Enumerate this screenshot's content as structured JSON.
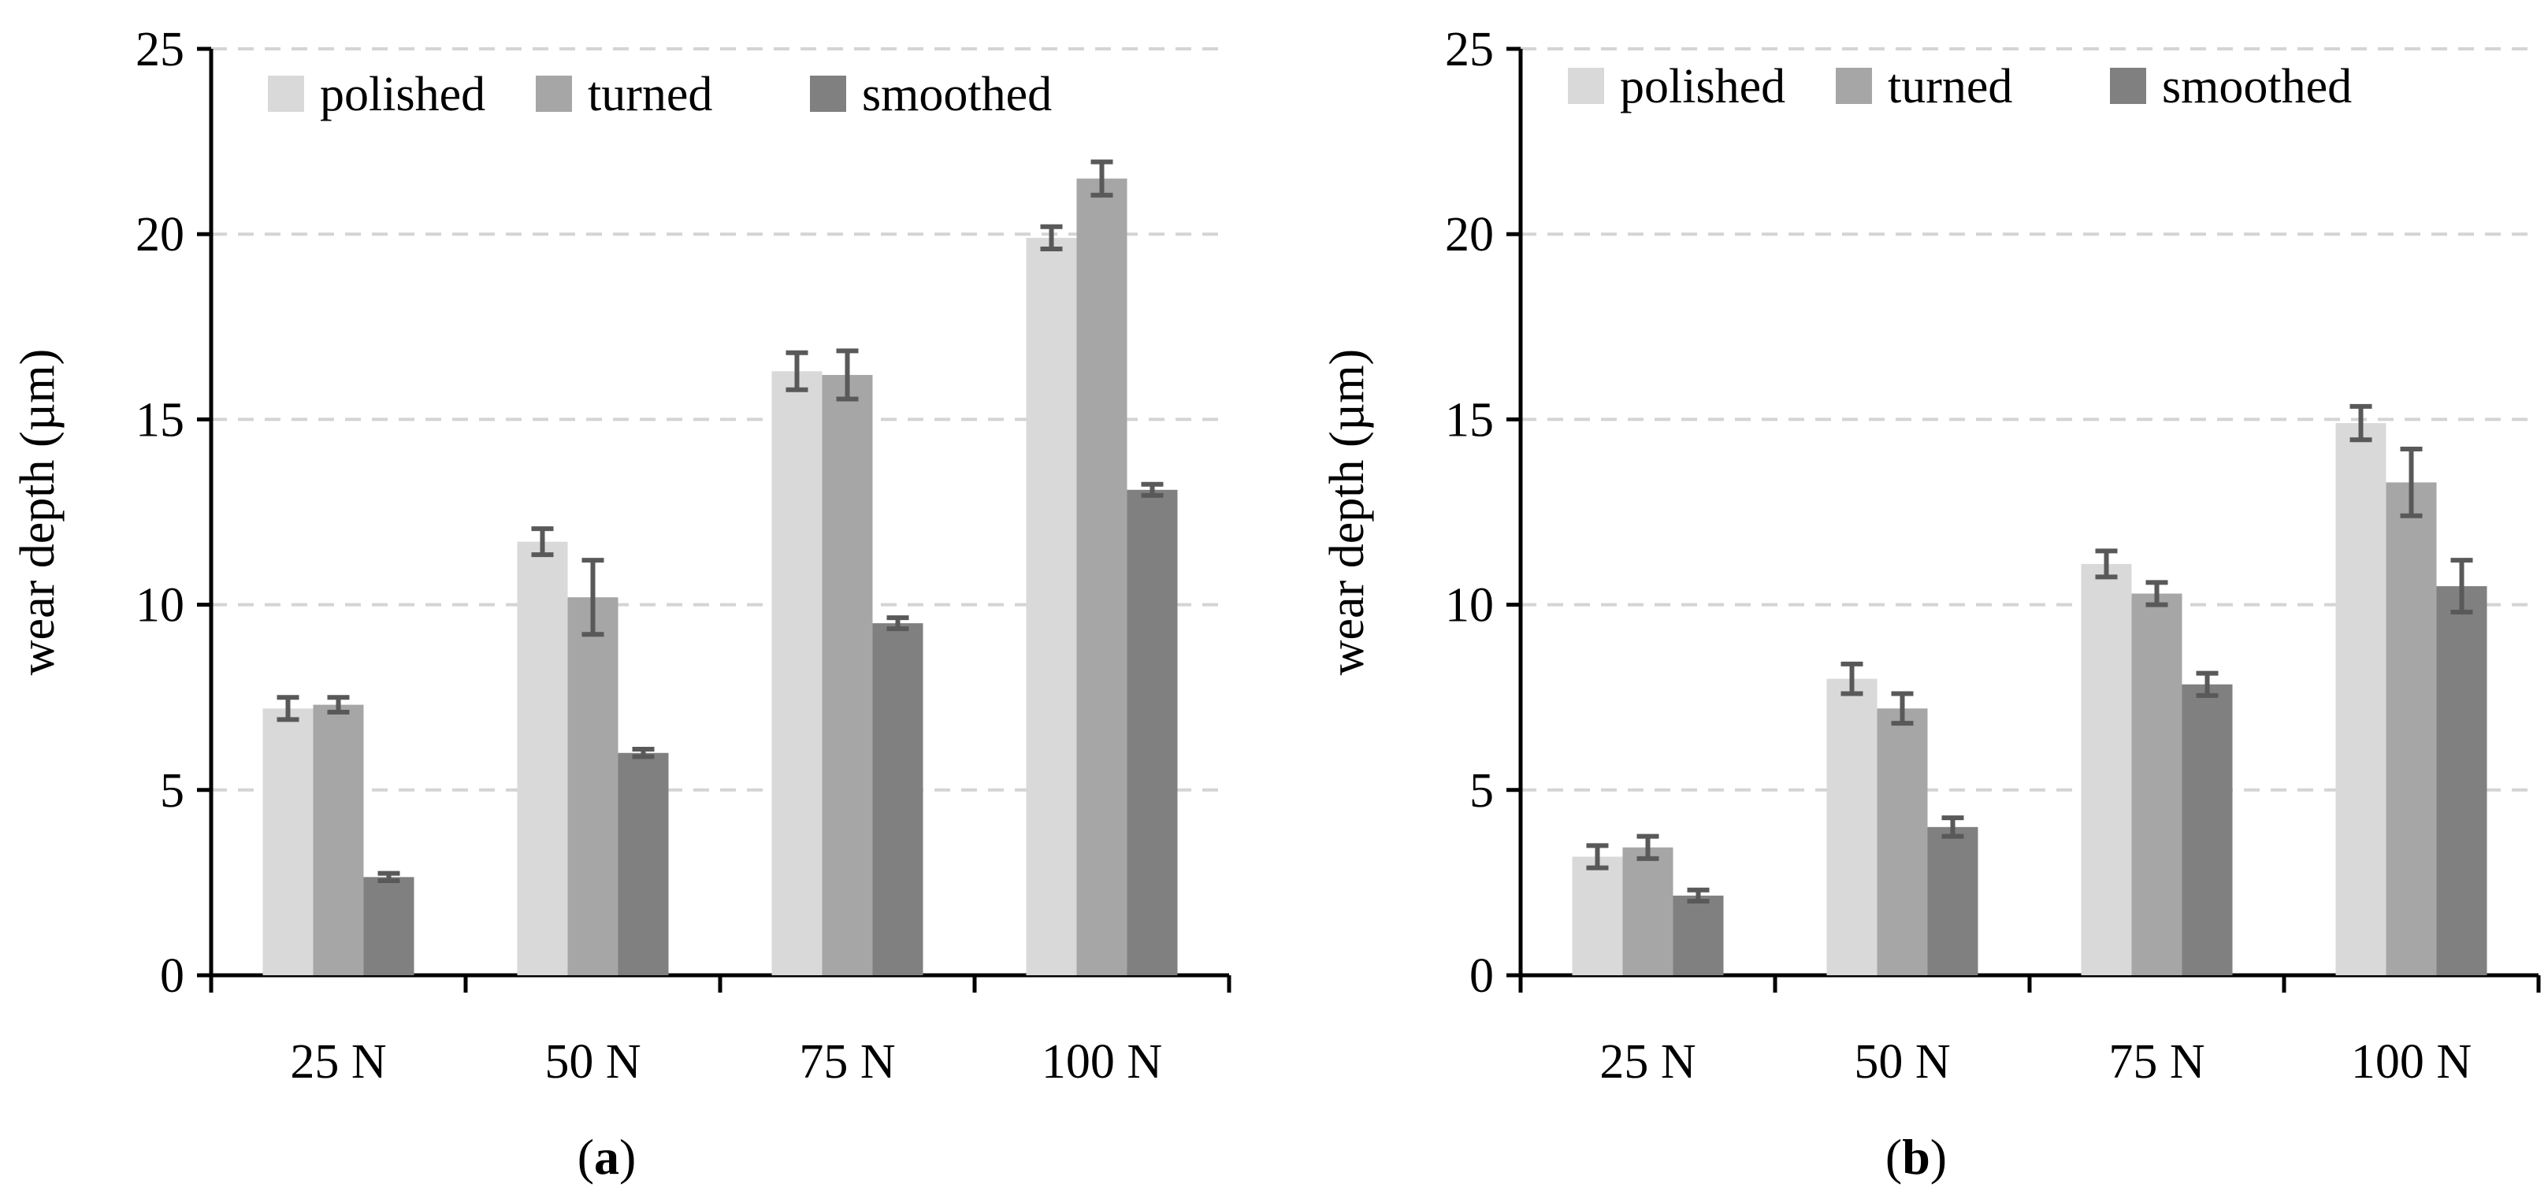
{
  "figure": {
    "panels": [
      "a",
      "b"
    ]
  },
  "chart_data": [
    {
      "type": "bar",
      "panel_label": "a",
      "title": "",
      "xlabel": "",
      "ylabel": "wear depth (µm)",
      "ylim": [
        0,
        25
      ],
      "yticks": [
        0,
        5,
        10,
        15,
        20,
        25
      ],
      "grid": "horizontal dashed",
      "legend": "top",
      "categories": [
        "25 N",
        "50 N",
        "75 N",
        "100 N"
      ],
      "series": [
        {
          "name": "polished",
          "color": "#d9d9d9",
          "values": [
            7.2,
            11.7,
            16.3,
            19.9
          ],
          "errors": [
            0.3,
            0.35,
            0.5,
            0.3
          ]
        },
        {
          "name": "turned",
          "color": "#a6a6a6",
          "values": [
            7.3,
            10.2,
            16.2,
            21.5
          ],
          "errors": [
            0.2,
            1.0,
            0.65,
            0.45
          ]
        },
        {
          "name": "smoothed",
          "color": "#808080",
          "values": [
            2.65,
            6.0,
            9.5,
            13.1
          ],
          "errors": [
            0.1,
            0.1,
            0.15,
            0.15
          ]
        }
      ]
    },
    {
      "type": "bar",
      "panel_label": "b",
      "title": "",
      "xlabel": "",
      "ylabel": "wear depth (µm)",
      "ylim": [
        0,
        25
      ],
      "yticks": [
        0,
        5,
        10,
        15,
        20,
        25
      ],
      "grid": "horizontal dashed",
      "legend": "top",
      "categories": [
        "25 N",
        "50 N",
        "75 N",
        "100 N"
      ],
      "series": [
        {
          "name": "polished",
          "color": "#d9d9d9",
          "values": [
            3.2,
            8.0,
            11.1,
            14.9
          ],
          "errors": [
            0.3,
            0.4,
            0.35,
            0.45
          ]
        },
        {
          "name": "turned",
          "color": "#a6a6a6",
          "values": [
            3.45,
            7.2,
            10.3,
            13.3
          ],
          "errors": [
            0.3,
            0.4,
            0.3,
            0.9
          ]
        },
        {
          "name": "smoothed",
          "color": "#808080",
          "values": [
            2.15,
            4.0,
            7.85,
            10.5
          ],
          "errors": [
            0.15,
            0.25,
            0.3,
            0.7
          ]
        }
      ]
    }
  ]
}
